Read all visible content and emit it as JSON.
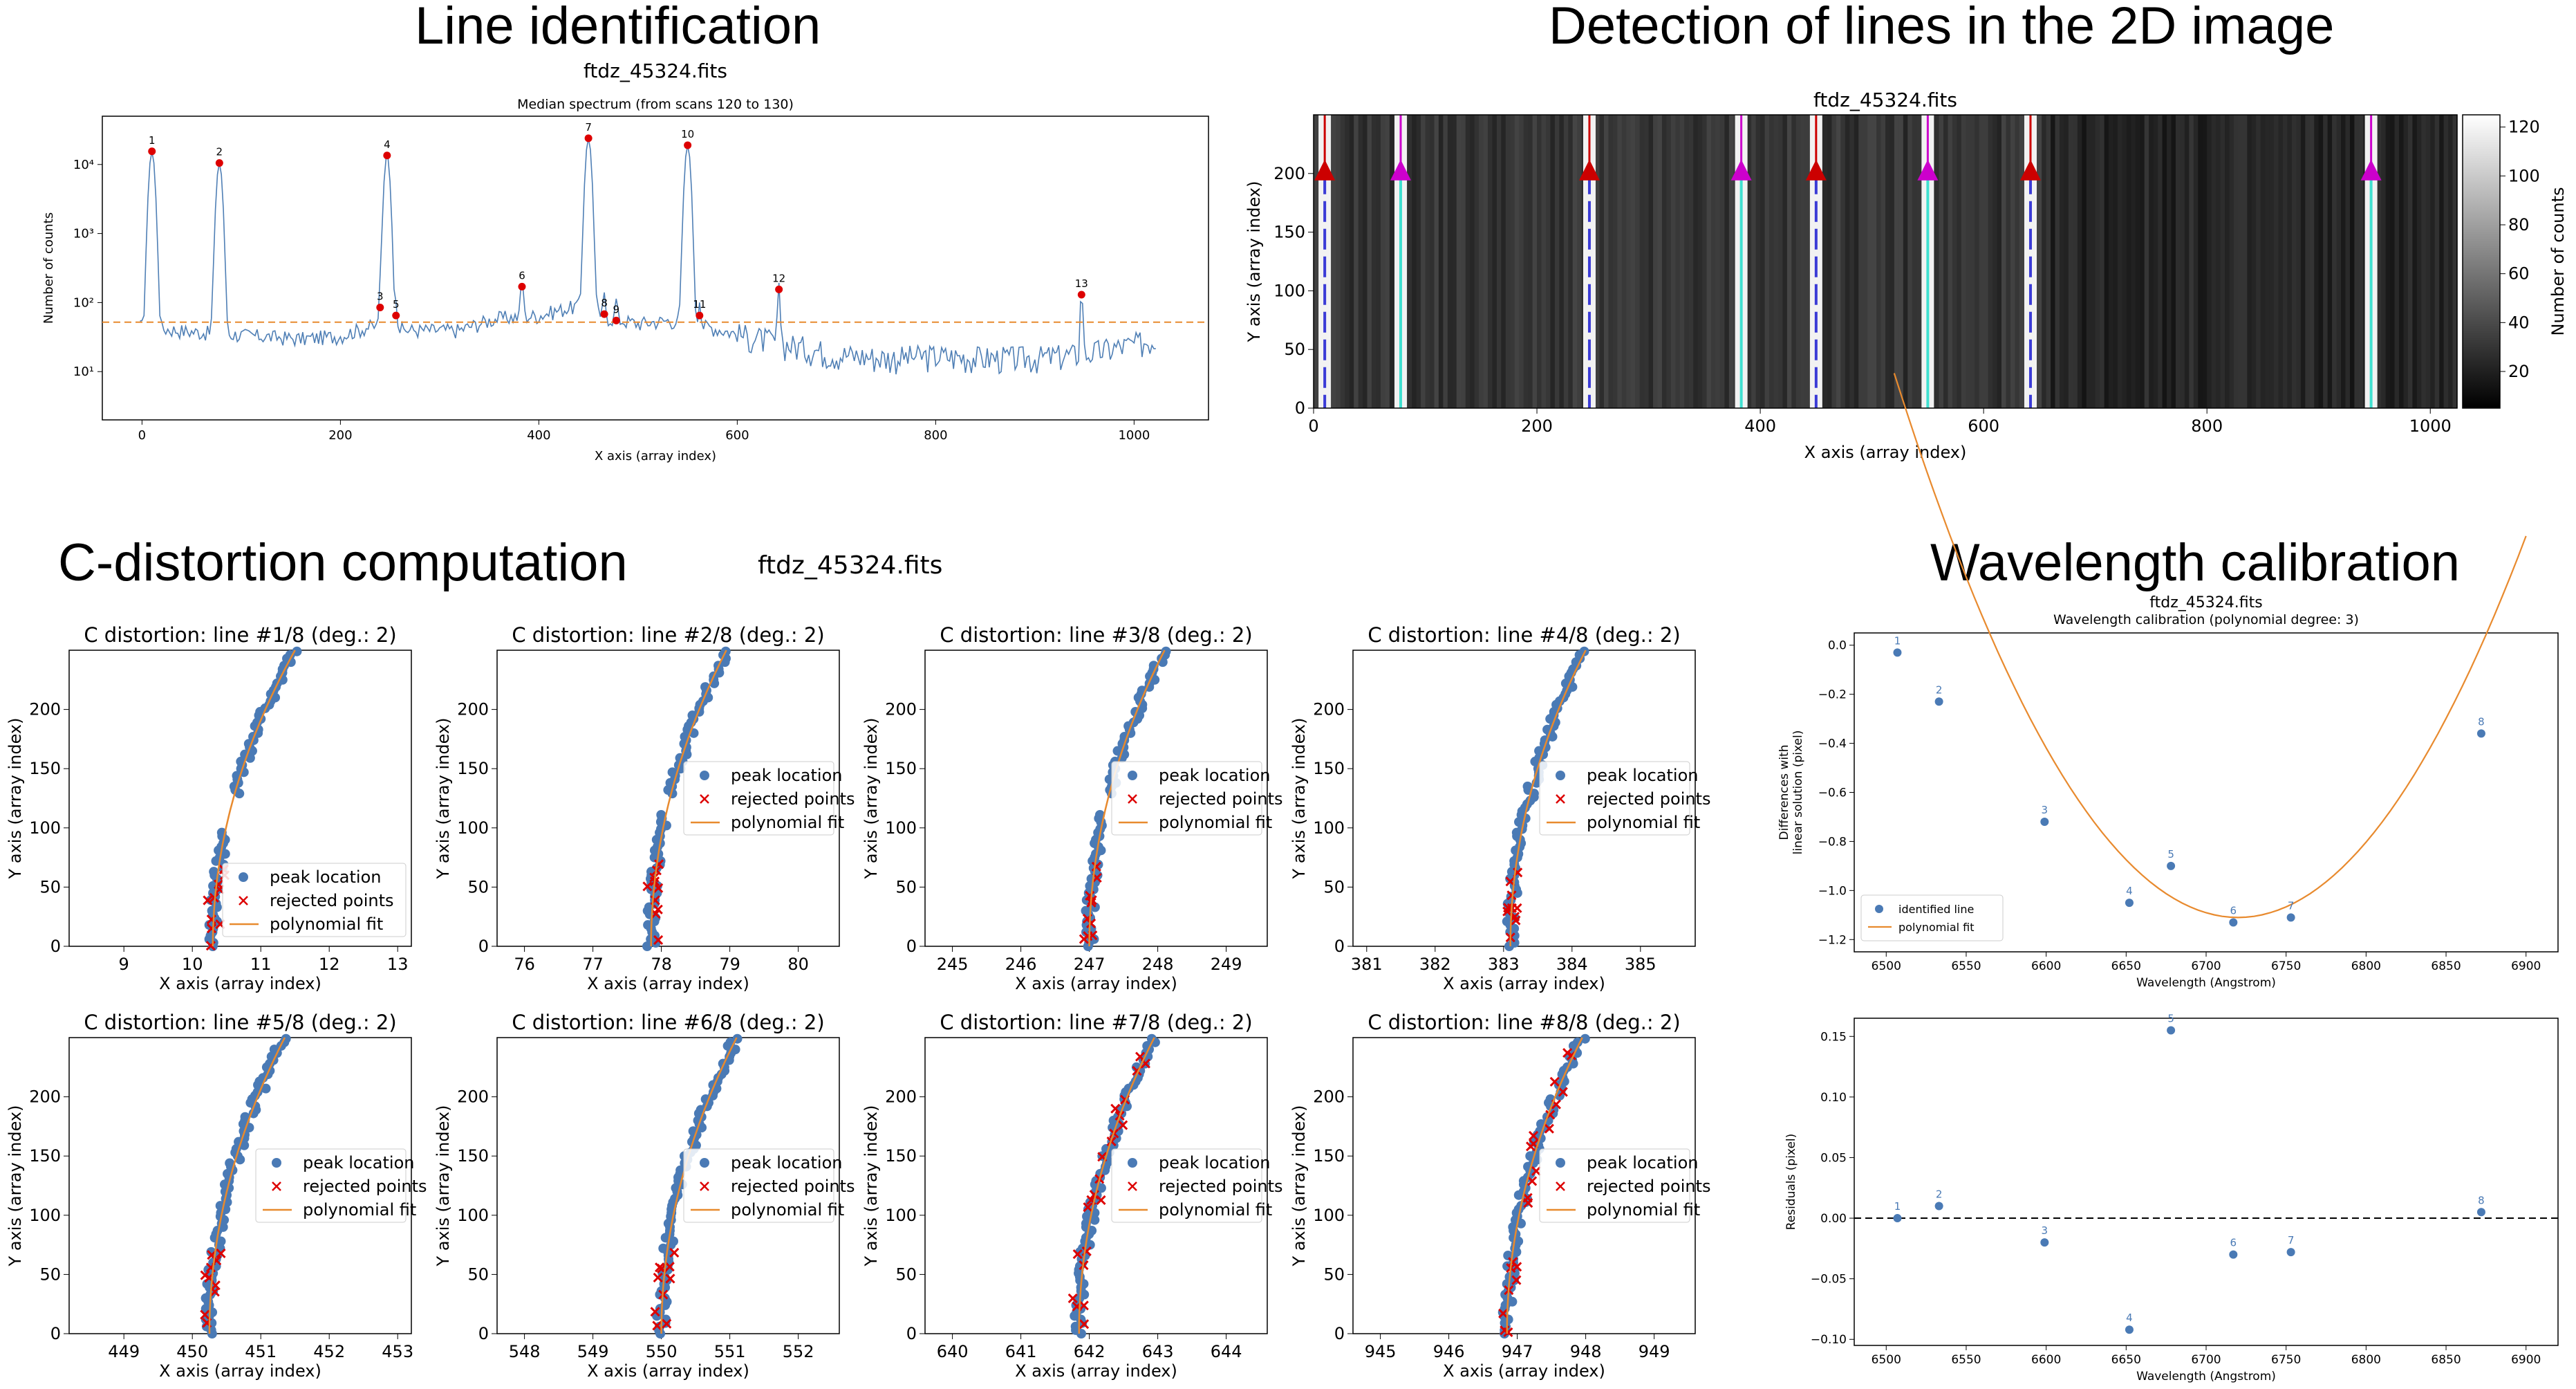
{
  "sections": {
    "line_identification": "Line identification",
    "detection_2d": "Detection of lines in the 2D image",
    "c_distortion": "C-distortion computation",
    "c_distortion_file": "ftdz_45324.fits",
    "wavelength_calibration": "Wavelength calibration"
  },
  "chart_data": [
    {
      "id": "spectrum",
      "type": "line",
      "suptitle": "ftdz_45324.fits",
      "title": "Median spectrum (from scans 120 to 130)",
      "xlabel": "X axis (array index)",
      "ylabel": "Number of counts",
      "xlim": [
        -40,
        1075
      ],
      "ylim": [
        2,
        50000
      ],
      "yscale": "log",
      "xticks": [
        0,
        200,
        400,
        600,
        800,
        1000
      ],
      "yticks": [
        {
          "v": 10,
          "label": "10¹"
        },
        {
          "v": 100,
          "label": "10²"
        },
        {
          "v": 1000,
          "label": "10³"
        },
        {
          "v": 10000,
          "label": "10⁴"
        }
      ],
      "threshold": 52,
      "baseline": [
        [
          -2,
          45
        ],
        [
          50,
          38
        ],
        [
          100,
          34
        ],
        [
          160,
          30
        ],
        [
          200,
          33
        ],
        [
          230,
          45
        ],
        [
          270,
          40
        ],
        [
          320,
          40
        ],
        [
          360,
          60
        ],
        [
          400,
          65
        ],
        [
          440,
          90
        ],
        [
          470,
          60
        ],
        [
          500,
          50
        ],
        [
          530,
          55
        ],
        [
          570,
          45
        ],
        [
          600,
          35
        ],
        [
          650,
          25
        ],
        [
          700,
          18
        ],
        [
          750,
          16
        ],
        [
          800,
          17
        ],
        [
          850,
          16
        ],
        [
          900,
          16
        ],
        [
          950,
          18
        ],
        [
          1000,
          25
        ],
        [
          1023,
          30
        ]
      ],
      "peaks": [
        {
          "label": "1",
          "x": 10,
          "y": 15500
        },
        {
          "label": "2",
          "x": 78,
          "y": 10500
        },
        {
          "label": "3",
          "x": 240,
          "y": 85
        },
        {
          "label": "4",
          "x": 247,
          "y": 13500
        },
        {
          "label": "5",
          "x": 256,
          "y": 65
        },
        {
          "label": "6",
          "x": 383,
          "y": 170
        },
        {
          "label": "7",
          "x": 450,
          "y": 24000
        },
        {
          "label": "8",
          "x": 466,
          "y": 68
        },
        {
          "label": "9",
          "x": 478,
          "y": 55
        },
        {
          "label": "10",
          "x": 550,
          "y": 19000
        },
        {
          "label": "11",
          "x": 562,
          "y": 65
        },
        {
          "label": "12",
          "x": 642,
          "y": 155
        },
        {
          "label": "13",
          "x": 947,
          "y": 130
        }
      ]
    },
    {
      "id": "image2d",
      "type": "heatmap",
      "title": "ftdz_45324.fits",
      "xlabel": "X axis (array index)",
      "ylabel": "Y axis (array index)",
      "colorbar_label": "Number of counts",
      "colorbar_ticks": [
        20,
        40,
        60,
        80,
        100,
        120
      ],
      "colorbar_range": [
        5,
        125
      ],
      "colormap": "gray",
      "xlim": [
        0,
        1024
      ],
      "ylim": [
        0,
        250
      ],
      "xticks": [
        0,
        200,
        400,
        600,
        800,
        1000
      ],
      "yticks": [
        0,
        50,
        100,
        150,
        200
      ],
      "lines": [
        {
          "x": 10,
          "marker": "#cc0000",
          "trace": "#3b3bd6",
          "kind": "dashed"
        },
        {
          "x": 78,
          "marker": "#cc00cc",
          "trace": "#40e0d0",
          "kind": "solid"
        },
        {
          "x": 247,
          "marker": "#cc0000",
          "trace": "#3b3bd6",
          "kind": "dashed"
        },
        {
          "x": 383,
          "marker": "#cc00cc",
          "trace": "#40e0d0",
          "kind": "solid"
        },
        {
          "x": 450,
          "marker": "#cc0000",
          "trace": "#3b3bd6",
          "kind": "dashed"
        },
        {
          "x": 550,
          "marker": "#cc00cc",
          "trace": "#40e0d0",
          "kind": "solid"
        },
        {
          "x": 642,
          "marker": "#cc0000",
          "trace": "#3b3bd6",
          "kind": "dashed"
        },
        {
          "x": 947,
          "marker": "#cc00cc",
          "trace": "#40e0d0",
          "kind": "solid"
        }
      ],
      "marker_y": 200
    },
    {
      "id": "cdist",
      "type": "scatter",
      "xlabel": "X axis (array index)",
      "ylabel": "Y axis (array index)",
      "ylim": [
        0,
        250
      ],
      "yticks": [
        0,
        50,
        100,
        150,
        200
      ],
      "legend": [
        "peak location",
        "rejected points",
        "polynomial fit"
      ],
      "colors": {
        "peak": "#4a7ab5",
        "rejected": "#dd0000",
        "fit": "#e88a2e"
      },
      "panels": [
        {
          "title": "C distortion: line #1/8 (deg.: 2)",
          "xlim": [
            8.2,
            13.2
          ],
          "xticks": [
            9,
            10,
            11,
            12,
            13
          ],
          "x0": 10.3,
          "curv": 0.012,
          "legend": "lower-right"
        },
        {
          "title": "C distortion: line #2/8 (deg.: 2)",
          "xlim": [
            75.6,
            80.6
          ],
          "xticks": [
            76,
            77,
            78,
            79,
            80
          ],
          "x0": 77.85,
          "curv": 0.011,
          "legend": "center-right"
        },
        {
          "title": "C distortion: line #3/8 (deg.: 2)",
          "xlim": [
            244.6,
            249.6
          ],
          "xticks": [
            245,
            246,
            247,
            248,
            249
          ],
          "x0": 247.0,
          "curv": 0.011,
          "legend": "center-right"
        },
        {
          "title": "C distortion: line #4/8 (deg.: 2)",
          "xlim": [
            380.8,
            385.8
          ],
          "xticks": [
            381,
            382,
            383,
            384,
            385
          ],
          "x0": 383.1,
          "curv": 0.011,
          "legend": "center-right"
        },
        {
          "title": "C distortion: line #5/8 (deg.: 2)",
          "xlim": [
            448.2,
            453.2
          ],
          "xticks": [
            449,
            450,
            451,
            452,
            453
          ],
          "x0": 450.25,
          "curv": 0.011,
          "legend": "center-right"
        },
        {
          "title": "C distortion: line #6/8 (deg.: 2)",
          "xlim": [
            547.6,
            552.6
          ],
          "xticks": [
            548,
            549,
            550,
            551,
            552
          ],
          "x0": 550.0,
          "curv": 0.011,
          "legend": "center-right"
        },
        {
          "title": "C distortion: line #7/8 (deg.: 2)",
          "xlim": [
            639.6,
            644.6
          ],
          "xticks": [
            640,
            641,
            642,
            643,
            644
          ],
          "x0": 641.85,
          "curv": 0.011,
          "legend": "center-right"
        },
        {
          "title": "C distortion: line #8/8 (deg.: 2)",
          "xlim": [
            944.6,
            949.6
          ],
          "xticks": [
            945,
            946,
            947,
            948,
            949
          ],
          "x0": 946.85,
          "curv": 0.011,
          "legend": "center-right"
        }
      ]
    },
    {
      "id": "wavecal",
      "type": "scatter",
      "suptitle": "ftdz_45324.fits",
      "title": "Wavelength calibration (polynomial degree: 3)",
      "xlabel": "Wavelength (Angstrom)",
      "ylabel_line1": "Differences with",
      "ylabel_line2": "linear solution (pixel)",
      "xlim": [
        6480,
        6920
      ],
      "ylim": [
        -1.25,
        0.05
      ],
      "xticks": [
        6500,
        6550,
        6600,
        6650,
        6700,
        6750,
        6800,
        6850,
        6900
      ],
      "yticks": [
        0.0,
        -0.2,
        -0.4,
        -0.6,
        -0.8,
        -1.0,
        -1.2
      ],
      "legend": [
        "identified line",
        "polynomial fit"
      ],
      "points": [
        {
          "label": "1",
          "x": 6507,
          "y": -0.03
        },
        {
          "label": "2",
          "x": 6533,
          "y": -0.23
        },
        {
          "label": "3",
          "x": 6599,
          "y": -0.72
        },
        {
          "label": "4",
          "x": 6652,
          "y": -1.05
        },
        {
          "label": "5",
          "x": 6678,
          "y": -0.9
        },
        {
          "label": "6",
          "x": 6717,
          "y": -1.13
        },
        {
          "label": "7",
          "x": 6753,
          "y": -1.11
        },
        {
          "label": "8",
          "x": 6872,
          "y": -0.36
        }
      ],
      "fit_vertex": [
        6720,
        -1.11
      ],
      "fit_a": 4.8e-05,
      "fit_range": [
        6505,
        6900
      ]
    },
    {
      "id": "residuals",
      "type": "scatter",
      "xlabel": "Wavelength (Angstrom)",
      "ylabel": "Residuals (pixel)",
      "xlim": [
        6480,
        6920
      ],
      "ylim": [
        -0.105,
        0.165
      ],
      "xticks": [
        6500,
        6550,
        6600,
        6650,
        6700,
        6750,
        6800,
        6850,
        6900
      ],
      "yticks": [
        0.15,
        0.1,
        0.05,
        0.0,
        -0.05,
        -0.1
      ],
      "points": [
        {
          "label": "1",
          "x": 6507,
          "y": 0.0
        },
        {
          "label": "2",
          "x": 6533,
          "y": 0.01
        },
        {
          "label": "3",
          "x": 6599,
          "y": -0.02
        },
        {
          "label": "4",
          "x": 6652,
          "y": -0.092
        },
        {
          "label": "5",
          "x": 6678,
          "y": 0.155
        },
        {
          "label": "6",
          "x": 6717,
          "y": -0.03
        },
        {
          "label": "7",
          "x": 6753,
          "y": -0.028
        },
        {
          "label": "8",
          "x": 6872,
          "y": 0.005
        }
      ]
    }
  ]
}
